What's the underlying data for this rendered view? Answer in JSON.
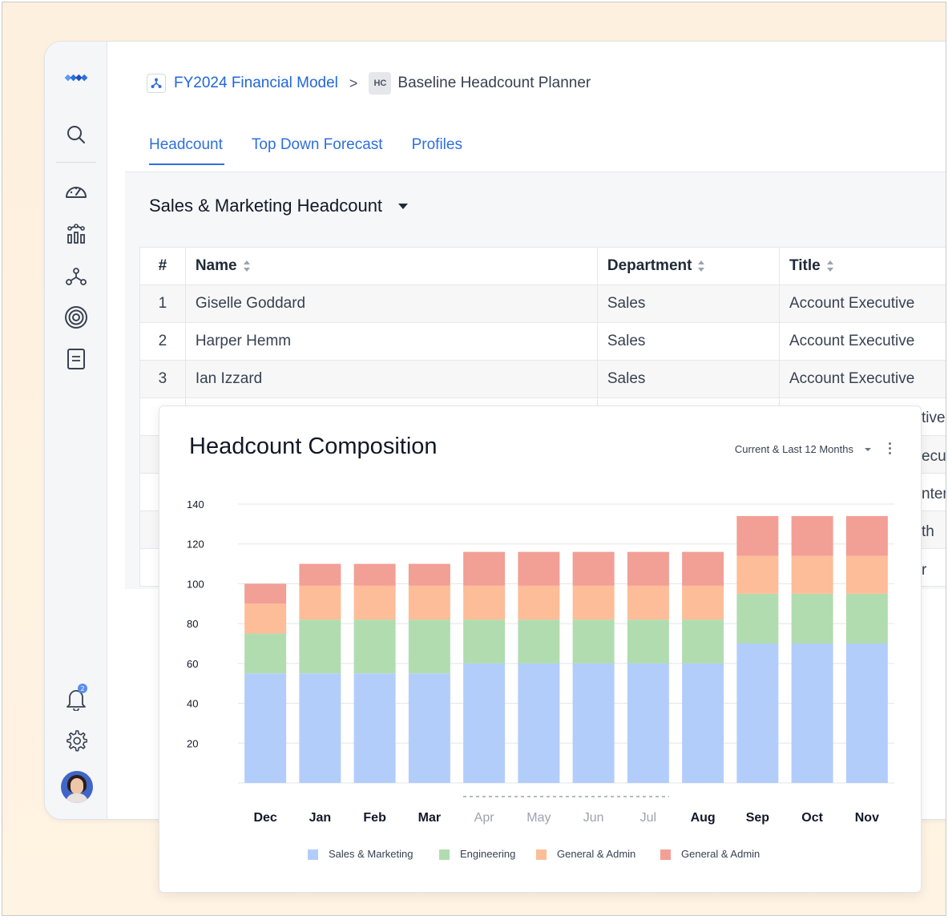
{
  "breadcrumb": {
    "model": "FY2024 Financial Model",
    "separator": ">",
    "planner_badge": "HC",
    "planner": "Baseline Headcount Planner"
  },
  "tabs": [
    {
      "label": "Headcount",
      "active": true
    },
    {
      "label": "Top Down Forecast",
      "active": false
    },
    {
      "label": "Profiles",
      "active": false
    }
  ],
  "section": {
    "title": "Sales & Marketing Headcount"
  },
  "table": {
    "columns": [
      "#",
      "Name",
      "Department",
      "Title"
    ],
    "rows": [
      {
        "num": "1",
        "name": "Giselle Goddard",
        "department": "Sales",
        "title": "Account Executive"
      },
      {
        "num": "2",
        "name": "Harper Hemm",
        "department": "Sales",
        "title": "Account Executive"
      },
      {
        "num": "3",
        "name": "Ian Izzard",
        "department": "Sales",
        "title": "Account Executive"
      }
    ],
    "hidden_row_fragments": [
      "tive",
      "ecut",
      "nten",
      "th",
      "r"
    ]
  },
  "sidebar": {
    "icons": [
      "logo-icon",
      "search-icon",
      "dashboard-icon",
      "analytics-icon",
      "model-icon",
      "goals-icon",
      "reports-icon",
      "bell-icon",
      "settings-icon"
    ],
    "notifications_count": "2"
  },
  "card": {
    "title": "Headcount Composition",
    "period": "Current & Last 12 Months"
  },
  "colors": {
    "accent": "#2f6fe0",
    "sales_marketing": "#b3cdfb",
    "engineering": "#b1dcb0",
    "general_admin_1": "#fdbd98",
    "general_admin_2": "#f29f95"
  },
  "chart_data": {
    "type": "bar",
    "stacked": true,
    "categories": [
      "Dec",
      "Jan",
      "Feb",
      "Mar",
      "Apr",
      "May",
      "Jun",
      "Jul",
      "Aug",
      "Sep",
      "Oct",
      "Nov"
    ],
    "muted_categories": [
      "Apr",
      "May",
      "Jun",
      "Jul"
    ],
    "yticks": [
      20,
      40,
      60,
      80,
      100,
      120,
      140
    ],
    "ylim": [
      0,
      140
    ],
    "series": [
      {
        "name": "Sales & Marketing",
        "color": "#b3cdfb",
        "values": [
          55,
          55,
          55,
          55,
          60,
          60,
          60,
          60,
          60,
          70,
          70,
          70
        ]
      },
      {
        "name": "Engineering",
        "color": "#b1dcb0",
        "values": [
          20,
          27,
          27,
          27,
          22,
          22,
          22,
          22,
          22,
          25,
          25,
          25
        ]
      },
      {
        "name": "General & Admin",
        "color": "#fdbd98",
        "values": [
          15,
          17,
          17,
          17,
          17,
          17,
          17,
          17,
          17,
          19,
          19,
          19
        ]
      },
      {
        "name": "General & Admin",
        "color": "#f29f95",
        "values": [
          10,
          11,
          11,
          11,
          17,
          17,
          17,
          17,
          17,
          20,
          20,
          20
        ]
      }
    ],
    "legend_position": "bottom"
  }
}
